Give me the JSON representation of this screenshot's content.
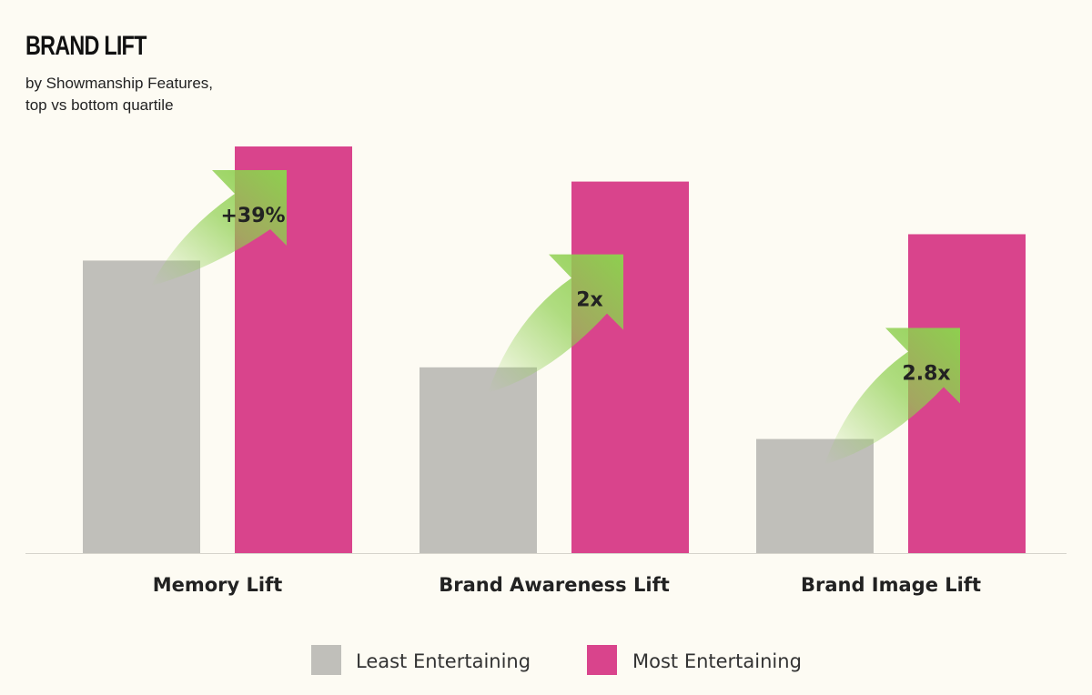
{
  "chart_data": {
    "type": "bar",
    "title": "BRAND LIFT",
    "subtitle": [
      "by Showmanship Features,",
      "top vs bottom quartile"
    ],
    "categories": [
      "Memory Lift",
      "Brand Awareness Lift",
      "Brand Image Lift"
    ],
    "series": [
      {
        "name": "Least Entertaining",
        "color": "#c0bfba",
        "values": [
          100,
          63.5,
          39
        ]
      },
      {
        "name": "Most Entertaining",
        "color": "#d9448c",
        "values": [
          139,
          127,
          109
        ]
      }
    ],
    "annotations": [
      "+39%",
      "2x",
      "2.8x"
    ],
    "annotation_color": "#8ecf4f",
    "ylim": [
      0,
      140
    ],
    "grid": false,
    "y_axis_visible": false,
    "legend": "bottom-center"
  }
}
